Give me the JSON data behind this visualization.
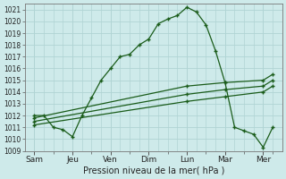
{
  "background_color": "#ceeaea",
  "grid_color": "#b0d4d4",
  "line_color": "#1a5c1a",
  "ylabel": "Pression niveau de la mer( hPa )",
  "ylim": [
    1009,
    1021.5
  ],
  "yticks": [
    1009,
    1010,
    1011,
    1012,
    1013,
    1014,
    1015,
    1016,
    1017,
    1018,
    1019,
    1020,
    1021
  ],
  "xlabels": [
    "Sam",
    "Jeu",
    "Ven",
    "Dim",
    "Lun",
    "Mar",
    "Mer"
  ],
  "xtick_positions": [
    0,
    2,
    4,
    6,
    8,
    10,
    12
  ],
  "series": [
    {
      "x": [
        0,
        0.5,
        1,
        1.5,
        2,
        2.5,
        3,
        3.5,
        4,
        4.5,
        5,
        5.5,
        6,
        6.5,
        7,
        7.5,
        8,
        8.5,
        9,
        9.5,
        10,
        10.5,
        11,
        11.5,
        12,
        12.5
      ],
      "y": [
        1012.0,
        1012.0,
        1011.0,
        1010.8,
        1010.2,
        1012.0,
        1013.5,
        1015.0,
        1016.0,
        1017.0,
        1017.2,
        1018.0,
        1018.5,
        1019.8,
        1020.2,
        1020.5,
        1021.2,
        1020.8,
        1019.7,
        1017.5,
        1014.8,
        1011.0,
        1010.7,
        1010.4,
        1009.3,
        1011.0
      ]
    },
    {
      "x": [
        0,
        8,
        10,
        12,
        12.5
      ],
      "y": [
        1011.8,
        1014.5,
        1014.8,
        1015.0,
        1015.5
      ]
    },
    {
      "x": [
        0,
        8,
        10,
        12,
        12.5
      ],
      "y": [
        1011.5,
        1013.8,
        1014.2,
        1014.5,
        1015.0
      ]
    },
    {
      "x": [
        0,
        8,
        10,
        12,
        12.5
      ],
      "y": [
        1011.2,
        1013.2,
        1013.6,
        1014.0,
        1014.5
      ]
    }
  ],
  "minor_xticks": [
    1,
    3,
    5,
    7,
    9,
    11,
    12.5
  ]
}
